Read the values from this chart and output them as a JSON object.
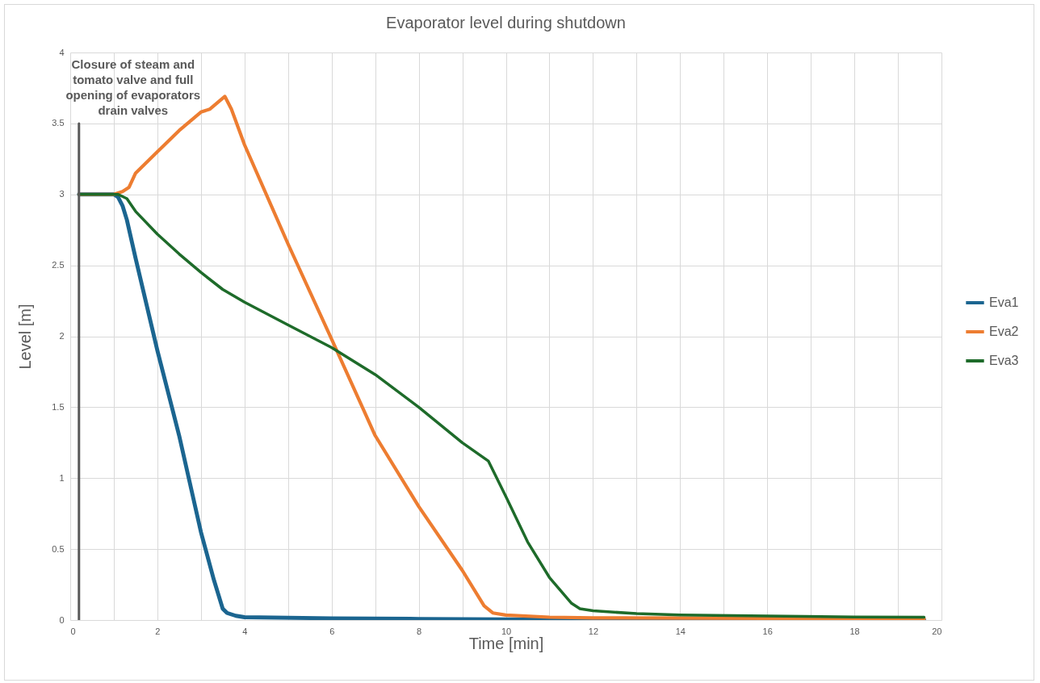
{
  "chart_data": {
    "type": "line",
    "title": "Evaporator level during shutdown",
    "xlabel": "Time [min]",
    "ylabel": "Level [m]",
    "xlim": [
      0,
      20
    ],
    "xticks": [
      0,
      {
        "value": 1,
        "label": null
      },
      2,
      {
        "value": 3,
        "label": null
      },
      4,
      {
        "value": 5,
        "label": null
      },
      6,
      {
        "value": 7,
        "label": null
      },
      8,
      {
        "value": 9,
        "label": null
      },
      10,
      {
        "value": 11,
        "label": null
      },
      12,
      {
        "value": 13,
        "label": null
      },
      14,
      {
        "value": 15,
        "label": null
      },
      16,
      {
        "value": 17,
        "label": null
      },
      18,
      {
        "value": 19,
        "label": null
      },
      20
    ],
    "ylim": [
      0,
      4
    ],
    "yticks": [
      0,
      0.5,
      1,
      1.5,
      2,
      2.5,
      3,
      3.5,
      4
    ],
    "grid": true,
    "legend": "right",
    "annotations": [
      {
        "text": "Closure of steam and tomato valve and full opening of evaporators drain valves",
        "x": 0.2,
        "y": 3.5
      }
    ],
    "series": [
      {
        "name": "Eva1",
        "color": "#1b6590",
        "x": [
          0.2,
          0.5,
          1.0,
          1.1,
          1.2,
          1.3,
          1.5,
          2.0,
          2.5,
          3.0,
          3.3,
          3.5,
          3.6,
          3.8,
          4.0,
          6.0,
          8.0,
          10.0,
          14.0,
          19.6
        ],
        "values": [
          3.0,
          3.0,
          3.0,
          2.98,
          2.92,
          2.82,
          2.55,
          1.9,
          1.3,
          0.62,
          0.28,
          0.08,
          0.05,
          0.03,
          0.02,
          0.012,
          0.008,
          0.005,
          0.004,
          0.003
        ]
      },
      {
        "name": "Eva2",
        "color": "#ed7d31",
        "x": [
          0.2,
          0.5,
          1.0,
          1.2,
          1.35,
          1.5,
          2.0,
          2.5,
          3.0,
          3.2,
          3.55,
          3.7,
          4.0,
          5.0,
          6.0,
          7.0,
          8.0,
          9.0,
          9.5,
          9.7,
          10.0,
          11.0,
          12.0,
          16.0,
          19.6
        ],
        "values": [
          3.0,
          3.0,
          3.0,
          3.02,
          3.05,
          3.15,
          3.3,
          3.45,
          3.58,
          3.6,
          3.69,
          3.6,
          3.35,
          2.65,
          1.98,
          1.3,
          0.8,
          0.35,
          0.1,
          0.05,
          0.035,
          0.02,
          0.015,
          0.012,
          0.01
        ]
      },
      {
        "name": "Eva3",
        "color": "#1e6b2a",
        "x": [
          0.2,
          0.5,
          1.1,
          1.3,
          1.5,
          2.0,
          2.5,
          3.0,
          3.5,
          4.0,
          5.0,
          6.0,
          7.0,
          8.0,
          9.0,
          9.6,
          10.0,
          10.5,
          11.0,
          11.5,
          11.7,
          12.0,
          13.0,
          14.0,
          16.0,
          18.0,
          19.6
        ],
        "values": [
          3.0,
          3.0,
          3.0,
          2.97,
          2.88,
          2.72,
          2.58,
          2.45,
          2.33,
          2.24,
          2.08,
          1.92,
          1.73,
          1.5,
          1.25,
          1.12,
          0.87,
          0.55,
          0.3,
          0.12,
          0.08,
          0.065,
          0.045,
          0.035,
          0.028,
          0.022,
          0.02
        ]
      },
      {
        "color": "#595959",
        "x": [
          0.2,
          0.2
        ],
        "values": [
          0,
          3.5
        ]
      }
    ]
  }
}
